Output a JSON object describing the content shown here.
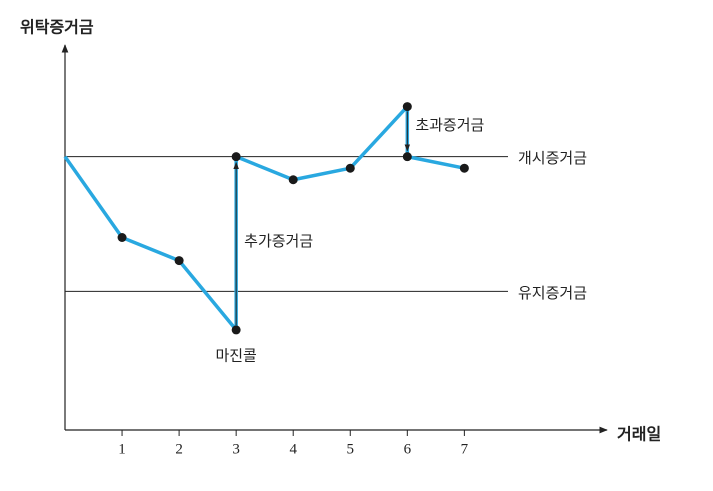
{
  "chart_data": {
    "type": "line",
    "ylabel": "위탁증거금",
    "xlabel": "거래일",
    "x": [
      0,
      1,
      2,
      3,
      3,
      4,
      5,
      6,
      6,
      7
    ],
    "series": [
      {
        "color": "#29a8e0",
        "values": [
          71,
          50,
          44,
          26,
          71,
          65,
          68,
          84,
          71,
          68
        ]
      }
    ],
    "xlim": [
      0,
      9.5
    ],
    "xticks": [
      1,
      2,
      3,
      4,
      5,
      6,
      7
    ],
    "ylim": [
      0,
      100
    ],
    "reference_lines": [
      {
        "label": "개시증거금",
        "value": 71
      },
      {
        "label": "유지증거금",
        "value": 36
      }
    ],
    "annotations": [
      {
        "label": "추가증거금",
        "x": 3,
        "from": 26,
        "to": 71
      },
      {
        "label": "초과증거금",
        "x": 6,
        "from": 84,
        "to": 71
      },
      {
        "label": "마진콜",
        "x": 3,
        "y": 26
      }
    ]
  }
}
